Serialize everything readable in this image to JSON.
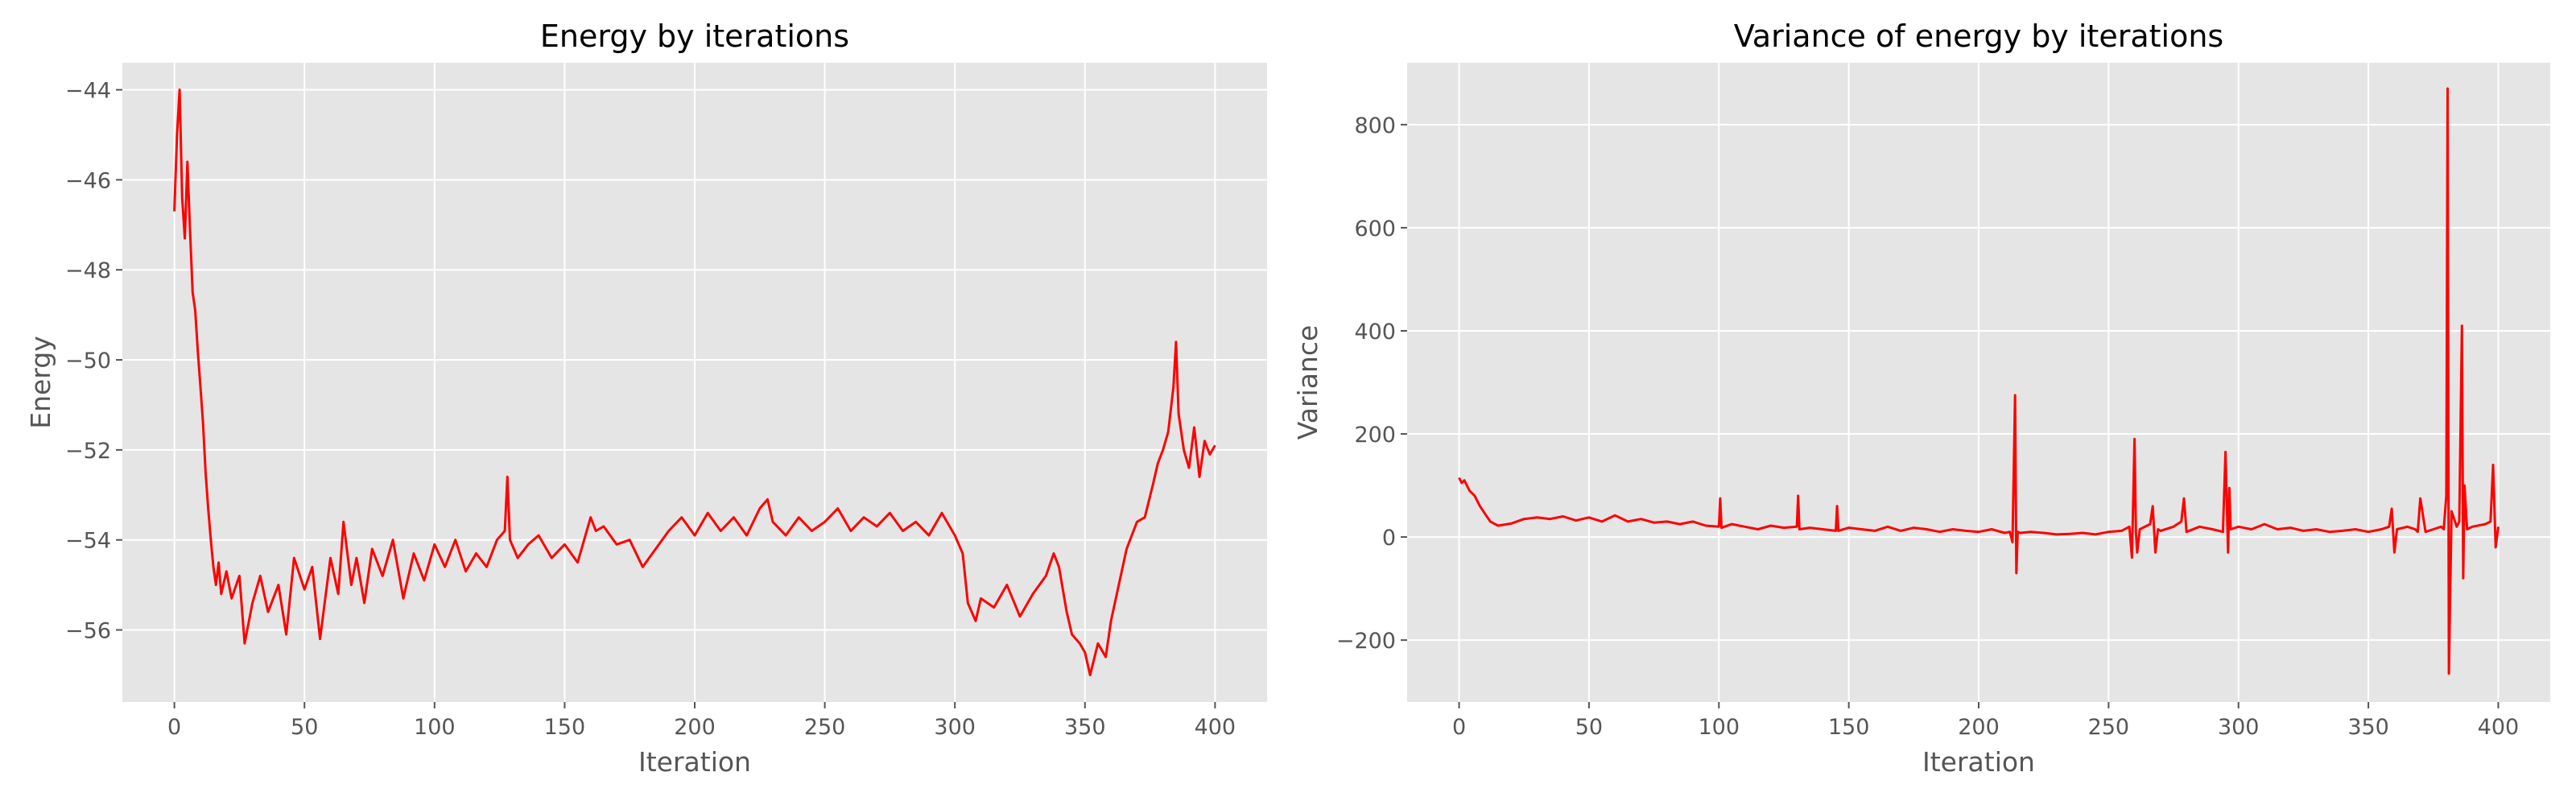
{
  "chart_data": [
    {
      "type": "line",
      "title": "Energy by iterations",
      "xlabel": "Iteration",
      "ylabel": "Energy",
      "xlim": [
        -20,
        420
      ],
      "ylim": [
        -57.6,
        -43.4
      ],
      "xticks": [
        0,
        50,
        100,
        150,
        200,
        250,
        300,
        350,
        400
      ],
      "yticks": [
        -56,
        -54,
        -52,
        -50,
        -48,
        -46,
        -44
      ],
      "xtick_labels": [
        "0",
        "50",
        "100",
        "150",
        "200",
        "250",
        "300",
        "350",
        "400"
      ],
      "ytick_labels": [
        "−56",
        "−54",
        "−52",
        "−50",
        "−48",
        "−46",
        "−44"
      ],
      "grid": true,
      "series": [
        {
          "color": "#ff0000",
          "x": [
            0,
            1,
            2,
            3,
            4,
            5,
            6,
            7,
            8,
            9,
            10,
            11,
            12,
            13,
            14,
            15,
            16,
            17,
            18,
            20,
            22,
            25,
            27,
            30,
            33,
            36,
            40,
            43,
            46,
            50,
            53,
            56,
            60,
            63,
            65,
            68,
            70,
            73,
            76,
            80,
            84,
            88,
            92,
            96,
            100,
            104,
            108,
            112,
            116,
            120,
            124,
            127,
            128,
            129,
            132,
            136,
            140,
            145,
            150,
            155,
            160,
            162,
            165,
            170,
            175,
            180,
            185,
            190,
            195,
            200,
            205,
            210,
            215,
            220,
            225,
            228,
            230,
            235,
            240,
            245,
            250,
            255,
            260,
            265,
            270,
            275,
            280,
            285,
            290,
            295,
            300,
            303,
            305,
            308,
            310,
            315,
            320,
            325,
            330,
            335,
            338,
            340,
            343,
            345,
            348,
            350,
            352,
            355,
            358,
            360,
            363,
            366,
            370,
            373,
            376,
            378,
            380,
            382,
            384,
            385,
            386,
            388,
            390,
            392,
            394,
            396,
            398,
            400
          ],
          "y": [
            -46.7,
            -45.0,
            -44.0,
            -46.4,
            -47.3,
            -45.6,
            -47.1,
            -48.5,
            -48.9,
            -49.8,
            -50.6,
            -51.4,
            -52.5,
            -53.3,
            -54.0,
            -54.6,
            -55.0,
            -54.5,
            -55.2,
            -54.7,
            -55.3,
            -54.8,
            -56.3,
            -55.4,
            -54.8,
            -55.6,
            -55.0,
            -56.1,
            -54.4,
            -55.1,
            -54.6,
            -56.2,
            -54.4,
            -55.2,
            -53.6,
            -55.0,
            -54.4,
            -55.4,
            -54.2,
            -54.8,
            -54.0,
            -55.3,
            -54.3,
            -54.9,
            -54.1,
            -54.6,
            -54.0,
            -54.7,
            -54.3,
            -54.6,
            -54.0,
            -53.8,
            -52.6,
            -54.0,
            -54.4,
            -54.1,
            -53.9,
            -54.4,
            -54.1,
            -54.5,
            -53.5,
            -53.8,
            -53.7,
            -54.1,
            -54.0,
            -54.6,
            -54.2,
            -53.8,
            -53.5,
            -53.9,
            -53.4,
            -53.8,
            -53.5,
            -53.9,
            -53.3,
            -53.1,
            -53.6,
            -53.9,
            -53.5,
            -53.8,
            -53.6,
            -53.3,
            -53.8,
            -53.5,
            -53.7,
            -53.4,
            -53.8,
            -53.6,
            -53.9,
            -53.4,
            -53.9,
            -54.3,
            -55.4,
            -55.8,
            -55.3,
            -55.5,
            -55.0,
            -55.7,
            -55.2,
            -54.8,
            -54.3,
            -54.6,
            -55.6,
            -56.1,
            -56.3,
            -56.5,
            -57.0,
            -56.3,
            -56.6,
            -55.8,
            -55.0,
            -54.2,
            -53.6,
            -53.5,
            -52.8,
            -52.3,
            -52.0,
            -51.6,
            -50.6,
            -49.6,
            -51.2,
            -52.0,
            -52.4,
            -51.5,
            -52.6,
            -51.8,
            -52.1,
            -51.9
          ]
        }
      ]
    },
    {
      "type": "line",
      "title": "Variance of energy by iterations",
      "xlabel": "Iteration",
      "ylabel": "Variance",
      "xlim": [
        -20,
        420
      ],
      "ylim": [
        -320,
        920
      ],
      "xticks": [
        0,
        50,
        100,
        150,
        200,
        250,
        300,
        350,
        400
      ],
      "yticks": [
        -200,
        0,
        200,
        400,
        600,
        800
      ],
      "xtick_labels": [
        "0",
        "50",
        "100",
        "150",
        "200",
        "250",
        "300",
        "350",
        "400"
      ],
      "ytick_labels": [
        "−200",
        "0",
        "200",
        "400",
        "600",
        "800"
      ],
      "grid": true,
      "series": [
        {
          "color": "#ff0000",
          "x": [
            0,
            1,
            2,
            4,
            6,
            8,
            10,
            12,
            15,
            20,
            25,
            30,
            35,
            40,
            45,
            50,
            55,
            60,
            65,
            70,
            75,
            80,
            85,
            90,
            95,
            100,
            100.5,
            101,
            105,
            110,
            115,
            120,
            125,
            130,
            130.5,
            131,
            135,
            140,
            145,
            145.5,
            146,
            150,
            155,
            160,
            165,
            170,
            175,
            180,
            185,
            190,
            195,
            200,
            205,
            210,
            212,
            213,
            214,
            214.5,
            215,
            216,
            220,
            225,
            230,
            235,
            240,
            245,
            250,
            255,
            258,
            259,
            260,
            260.5,
            261,
            262,
            266,
            267,
            268,
            269,
            270,
            275,
            278,
            279,
            280,
            285,
            290,
            294,
            295,
            296,
            296.5,
            297,
            300,
            305,
            310,
            315,
            320,
            325,
            330,
            335,
            340,
            345,
            350,
            355,
            358,
            359,
            360,
            361,
            365,
            368,
            369,
            370,
            372,
            375,
            378,
            379,
            380,
            380.5,
            381,
            382,
            384,
            385,
            386,
            386.5,
            387,
            388,
            390,
            395,
            397,
            398,
            399,
            400
          ],
          "y": [
            115,
            105,
            110,
            90,
            80,
            60,
            45,
            30,
            22,
            26,
            35,
            38,
            35,
            40,
            32,
            38,
            30,
            42,
            30,
            35,
            28,
            30,
            25,
            30,
            22,
            20,
            75,
            18,
            25,
            20,
            15,
            22,
            18,
            20,
            80,
            15,
            18,
            15,
            12,
            60,
            12,
            18,
            15,
            12,
            20,
            12,
            18,
            15,
            10,
            15,
            12,
            10,
            15,
            8,
            10,
            -10,
            275,
            -70,
            10,
            8,
            10,
            8,
            5,
            6,
            8,
            5,
            10,
            12,
            20,
            -40,
            190,
            10,
            -30,
            15,
            25,
            60,
            -30,
            15,
            12,
            20,
            30,
            75,
            10,
            20,
            15,
            10,
            165,
            -30,
            95,
            15,
            20,
            15,
            25,
            15,
            18,
            12,
            15,
            10,
            12,
            15,
            10,
            15,
            20,
            55,
            -30,
            15,
            20,
            15,
            10,
            75,
            10,
            15,
            20,
            15,
            80,
            870,
            -265,
            50,
            20,
            30,
            410,
            -80,
            100,
            15,
            20,
            25,
            30,
            140,
            -20,
            20
          ]
        }
      ]
    }
  ]
}
